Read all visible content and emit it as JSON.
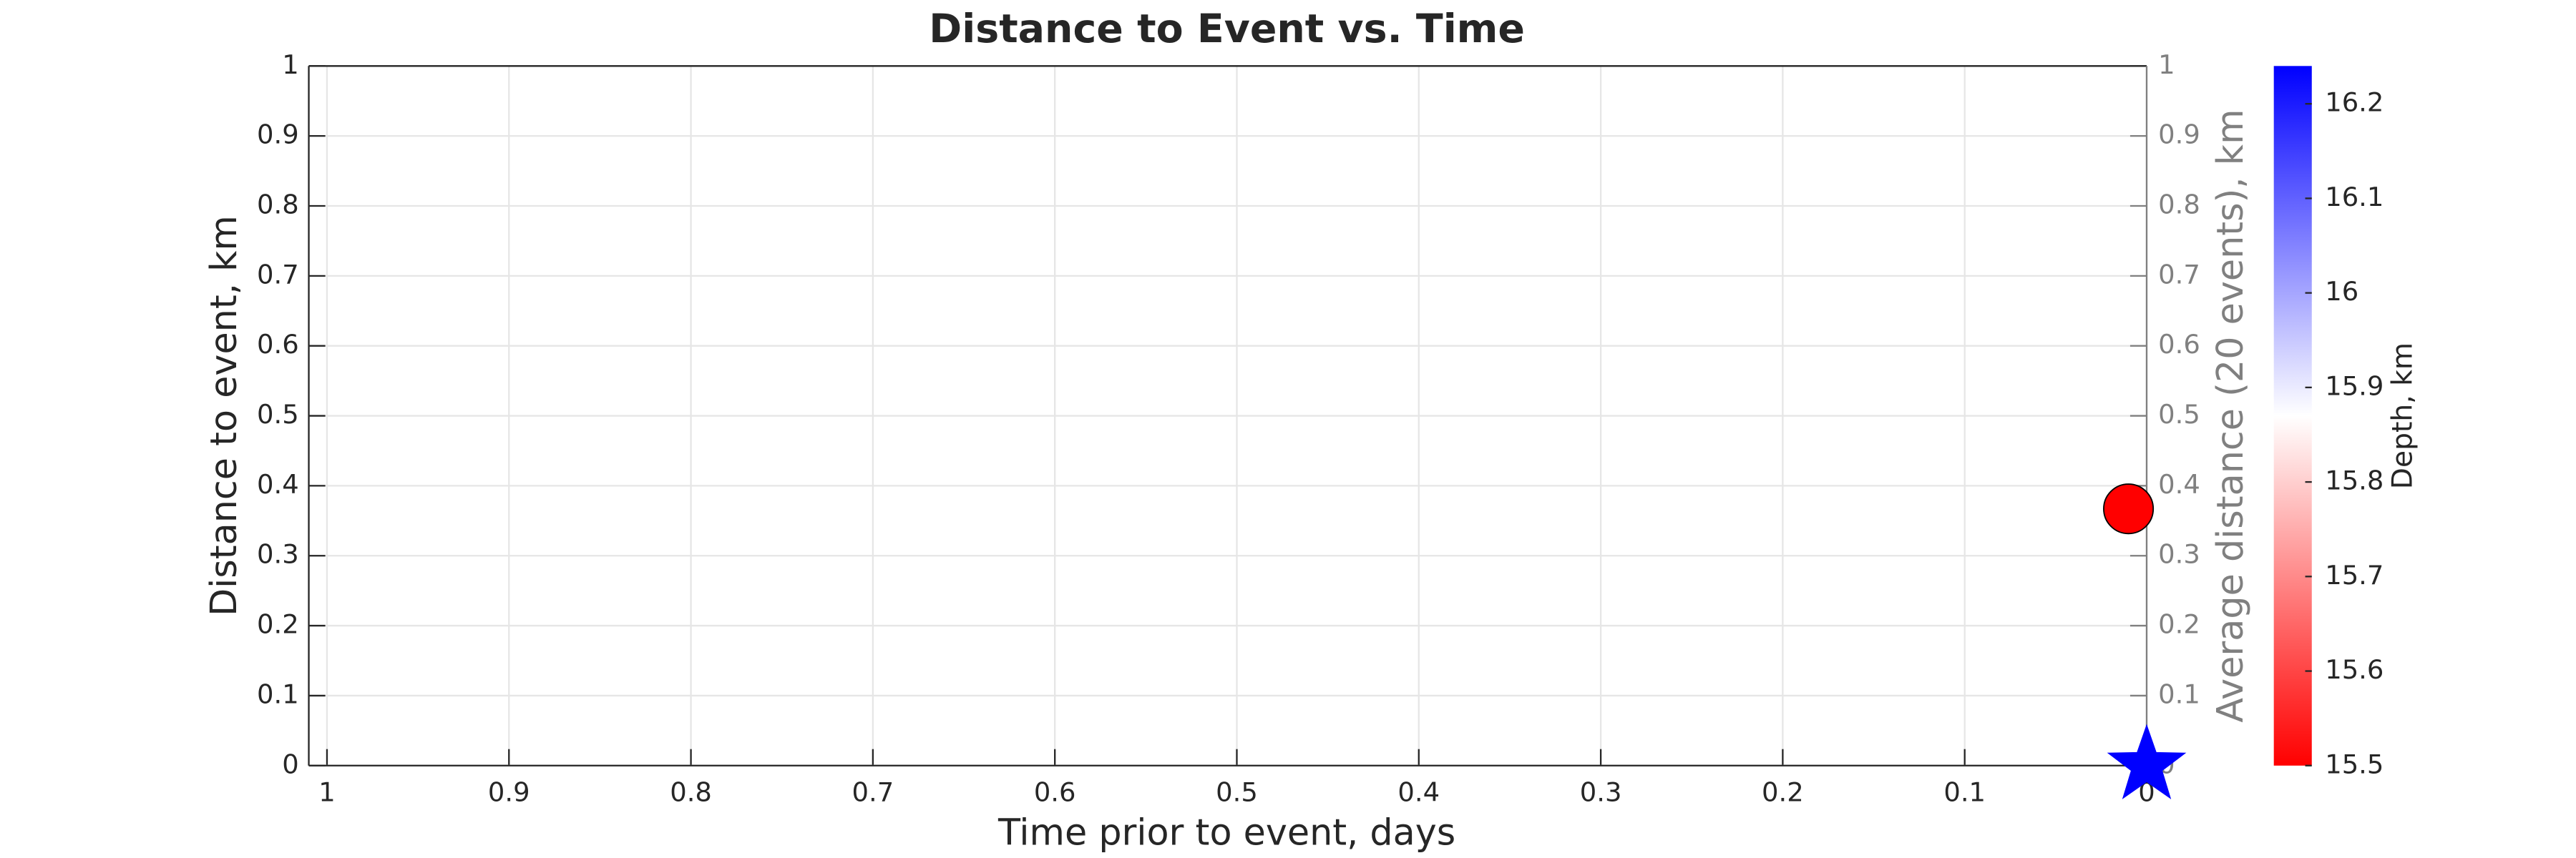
{
  "chart_data": {
    "type": "scatter",
    "title": "Distance to Event vs. Time",
    "xlabel": "Time prior to event, days",
    "ylabel": "Distance to event, km",
    "y2label": "Average distance (20 events), km",
    "colorbar_label": "Depth, km",
    "xlim": [
      1.01,
      0
    ],
    "xticks": [
      1,
      0.9,
      0.8,
      0.7,
      0.6,
      0.5,
      0.4,
      0.3,
      0.2,
      0.1,
      0
    ],
    "ylim": [
      0,
      1
    ],
    "yticks": [
      0,
      0.1,
      0.2,
      0.3,
      0.4,
      0.5,
      0.6,
      0.7,
      0.8,
      0.9,
      1
    ],
    "y2lim": [
      0,
      1
    ],
    "y2ticks": [
      0,
      0.1,
      0.2,
      0.3,
      0.4,
      0.5,
      0.6,
      0.7,
      0.8,
      0.9,
      1
    ],
    "grid": true,
    "colormap": [
      "#ff0000",
      "#ffffff",
      "#0000ff"
    ],
    "clim": [
      15.5,
      16.24
    ],
    "cticks": [
      15.5,
      15.6,
      15.7,
      15.8,
      15.9,
      16,
      16.1,
      16.2
    ],
    "series": [
      {
        "marker": "circle",
        "x": [
          0.01
        ],
        "values": [
          0.367
        ],
        "depth": [
          15.5
        ]
      },
      {
        "marker": "star",
        "x": [
          0
        ],
        "values": [
          0
        ],
        "depth": [
          16.24
        ]
      }
    ]
  }
}
